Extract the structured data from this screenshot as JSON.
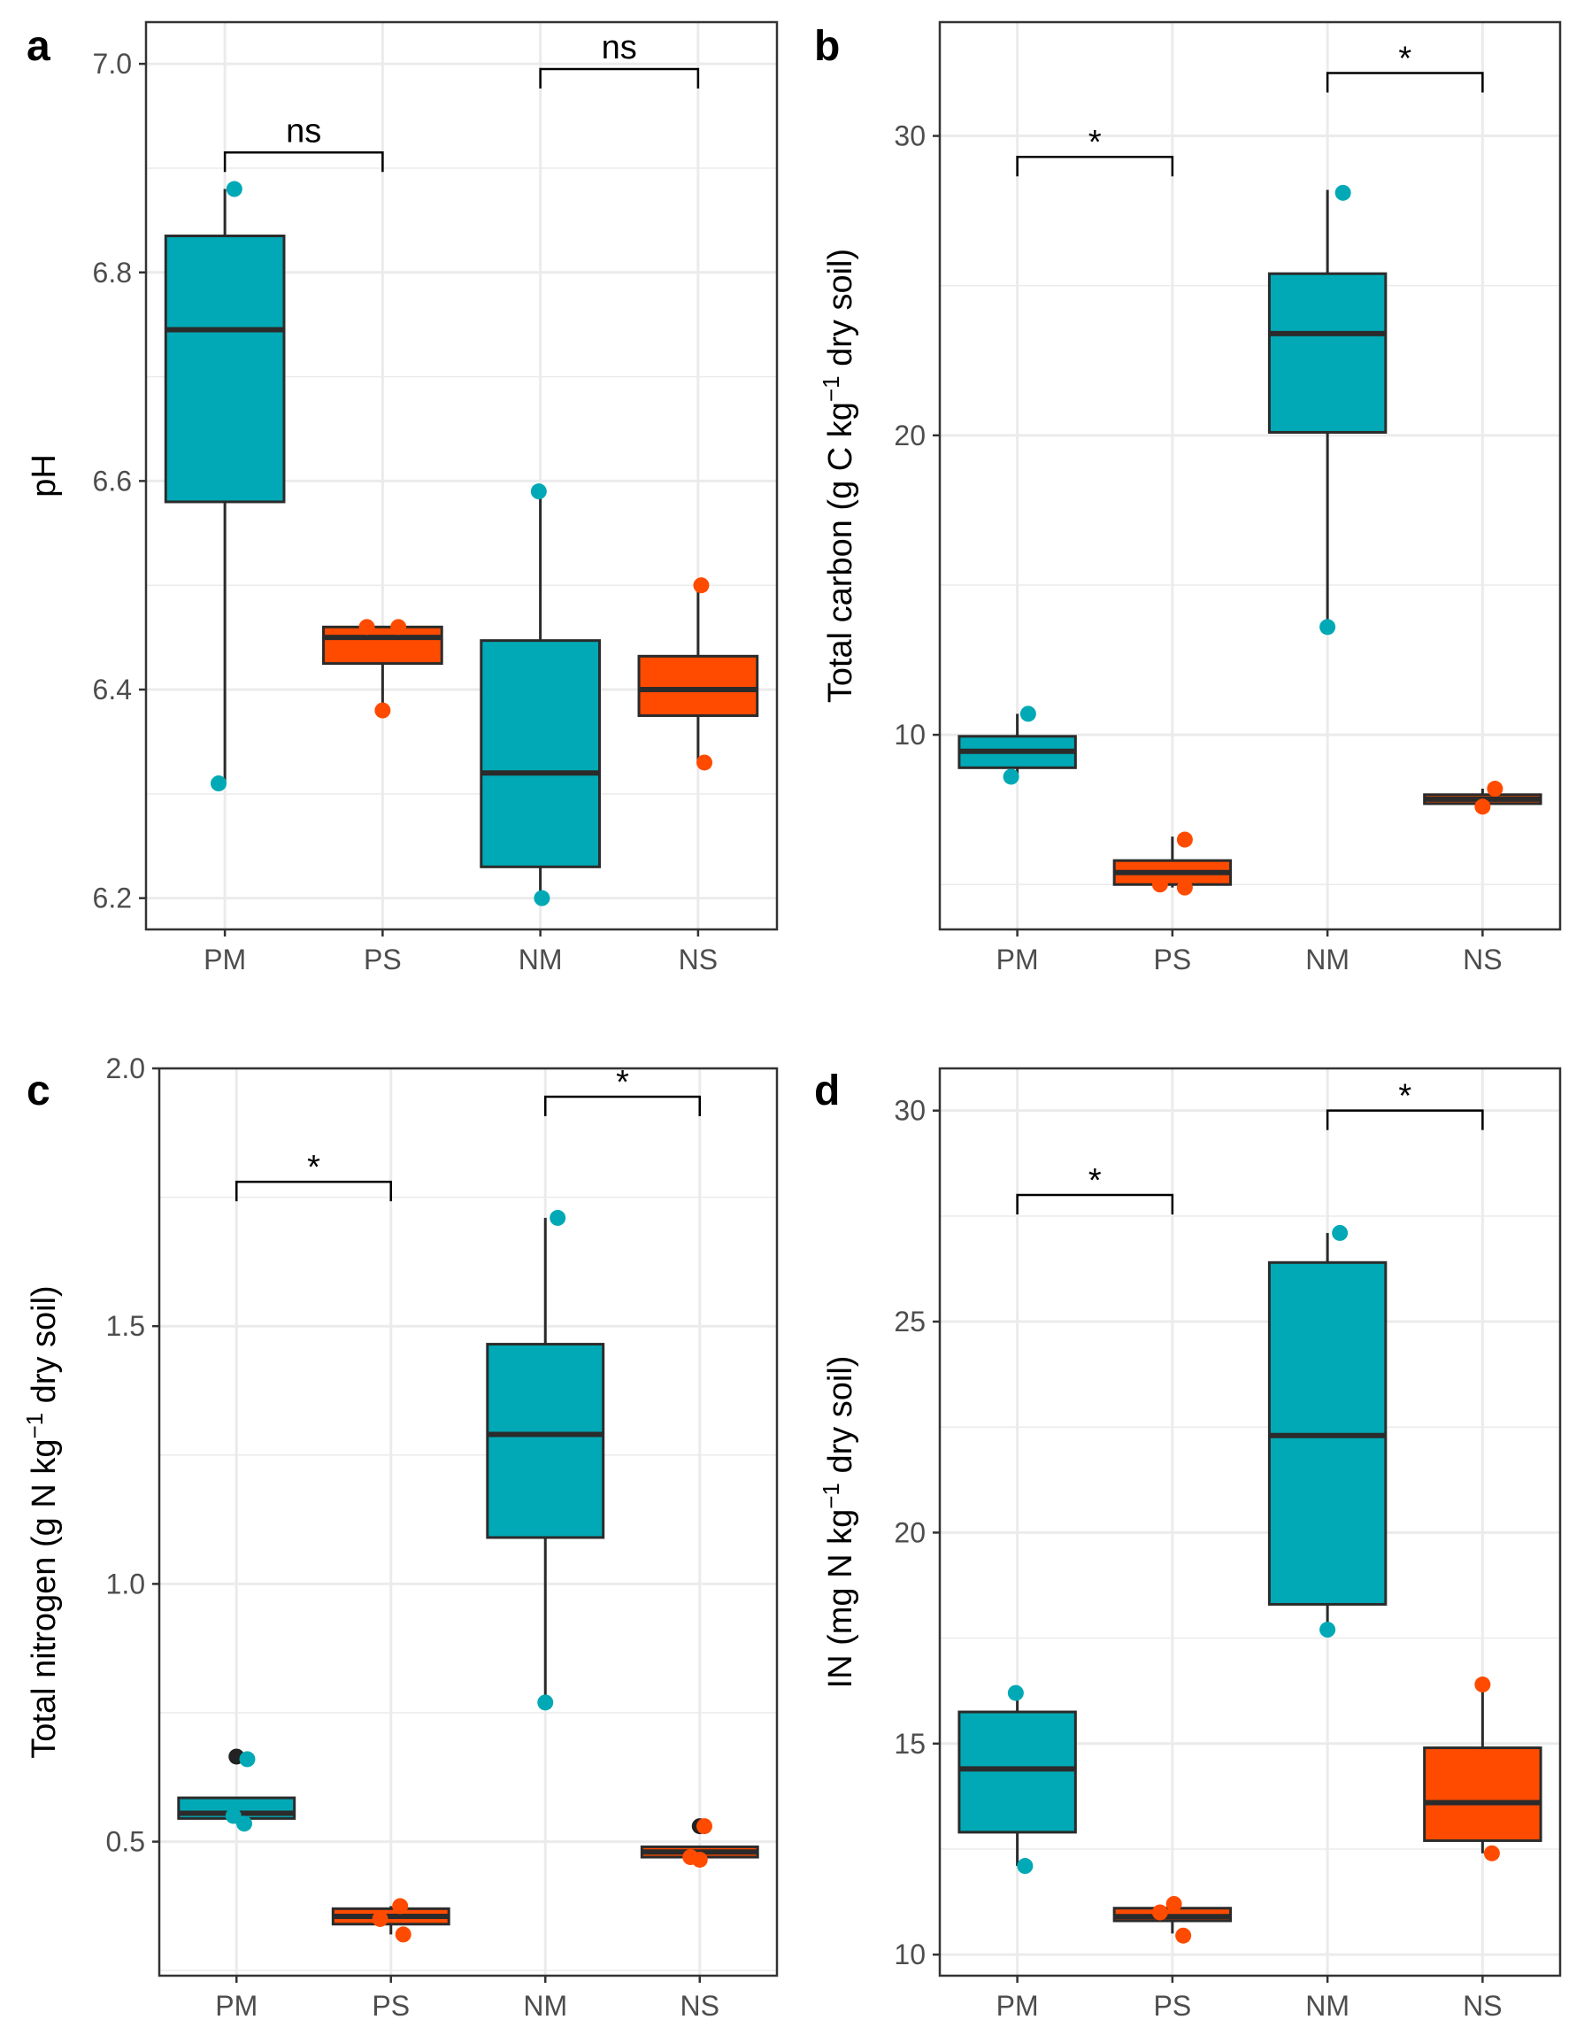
{
  "colors": {
    "mature": "#00A9B5",
    "seedling": "#FF4B00",
    "outlier": "#222222",
    "grid": "#ebebeb",
    "line": "#2b2b2b",
    "frame": "#333333"
  },
  "groups": [
    "PM",
    "PS",
    "NM",
    "NS"
  ],
  "chart_data": [
    {
      "panel": "a",
      "type": "boxplot",
      "ylabel": {
        "pre": "pH",
        "sup": "",
        "post": ""
      },
      "ylim": [
        6.17,
        7.04
      ],
      "yticks": [
        6.2,
        6.4,
        6.6,
        6.8,
        7.0
      ],
      "yticklabels": [
        "6.2",
        "6.4",
        "6.6",
        "6.8",
        "7.0"
      ],
      "minor_gridlines": [
        6.3,
        6.5,
        6.7,
        6.9
      ],
      "boxes": [
        {
          "group": "PM",
          "color": "mature",
          "q1": 6.58,
          "median": 6.745,
          "q3": 6.835,
          "whisker_low": 6.31,
          "whisker_high": 6.88,
          "points": [
            {
              "y": 6.88,
              "dx": 0.06
            },
            {
              "y": 6.31,
              "dx": -0.04
            }
          ]
        },
        {
          "group": "PS",
          "color": "seedling",
          "q1": 6.425,
          "median": 6.45,
          "q3": 6.46,
          "whisker_low": 6.38,
          "whisker_high": 6.46,
          "points": [
            {
              "y": 6.46,
              "dx": -0.1
            },
            {
              "y": 6.46,
              "dx": 0.1
            },
            {
              "y": 6.38,
              "dx": 0.0
            }
          ]
        },
        {
          "group": "NM",
          "color": "mature",
          "q1": 6.23,
          "median": 6.32,
          "q3": 6.447,
          "whisker_low": 6.2,
          "whisker_high": 6.59,
          "points": [
            {
              "y": 6.59,
              "dx": -0.01
            },
            {
              "y": 6.2,
              "dx": 0.01
            }
          ]
        },
        {
          "group": "NS",
          "color": "seedling",
          "q1": 6.375,
          "median": 6.4,
          "q3": 6.432,
          "whisker_low": 6.33,
          "whisker_high": 6.5,
          "points": [
            {
              "y": 6.5,
              "dx": 0.02
            },
            {
              "y": 6.33,
              "dx": 0.04
            }
          ]
        }
      ],
      "comparisons": [
        {
          "from": "PM",
          "to": "PS",
          "y": 6.915,
          "label": "ns"
        },
        {
          "from": "NM",
          "to": "NS",
          "y": 6.995,
          "label": "ns"
        }
      ]
    },
    {
      "panel": "b",
      "type": "boxplot",
      "ylabel": {
        "pre": "Total carbon (g C  kg",
        "sup": "−1",
        "post": " dry soil)"
      },
      "ylim": [
        3.5,
        33.8
      ],
      "yticks": [
        10,
        20,
        30
      ],
      "yticklabels": [
        "10",
        "20",
        "30"
      ],
      "minor_gridlines": [
        5,
        15,
        25
      ],
      "boxes": [
        {
          "group": "PM",
          "color": "mature",
          "q1": 8.9,
          "median": 9.45,
          "q3": 9.95,
          "whisker_low": 8.6,
          "whisker_high": 10.7,
          "points": [
            {
              "y": 10.7,
              "dx": 0.07
            },
            {
              "y": 8.6,
              "dx": -0.04
            }
          ]
        },
        {
          "group": "PS",
          "color": "seedling",
          "q1": 5.0,
          "median": 5.4,
          "q3": 5.8,
          "whisker_low": 4.9,
          "whisker_high": 6.6,
          "points": [
            {
              "y": 6.5,
              "dx": 0.08
            },
            {
              "y": 5.0,
              "dx": -0.08
            },
            {
              "y": 4.9,
              "dx": 0.08
            }
          ]
        },
        {
          "group": "NM",
          "color": "mature",
          "q1": 20.1,
          "median": 23.4,
          "q3": 25.4,
          "whisker_low": 13.6,
          "whisker_high": 28.2,
          "points": [
            {
              "y": 28.1,
              "dx": 0.1
            },
            {
              "y": 13.6,
              "dx": 0.0
            }
          ]
        },
        {
          "group": "NS",
          "color": "seedling",
          "q1": 7.7,
          "median": 7.85,
          "q3": 8.0,
          "whisker_low": 7.6,
          "whisker_high": 8.2,
          "points": [
            {
              "y": 8.2,
              "dx": 0.08
            },
            {
              "y": 7.6,
              "dx": 0.0
            }
          ]
        }
      ],
      "comparisons": [
        {
          "from": "PM",
          "to": "PS",
          "y": 29.3,
          "label": "*"
        },
        {
          "from": "NM",
          "to": "NS",
          "y": 32.1,
          "label": "*"
        }
      ]
    },
    {
      "panel": "c",
      "type": "boxplot",
      "ylabel": {
        "pre": "Total nitrogen (g N  kg",
        "sup": "−1",
        "post": " dry soil)"
      },
      "ylim": [
        0.24,
        2.0
      ],
      "yticks": [
        0.5,
        1.0,
        1.5,
        2.0
      ],
      "yticklabels": [
        "0.5",
        "1.0",
        "1.5",
        "2.0"
      ],
      "minor_gridlines": [
        0.25,
        0.75,
        1.25,
        1.75
      ],
      "boxes": [
        {
          "group": "PM",
          "color": "mature",
          "q1": 0.545,
          "median": 0.555,
          "q3": 0.585,
          "whisker_low": 0.535,
          "whisker_high": 0.585,
          "points": [
            {
              "y": 0.66,
              "dx": 0.07
            },
            {
              "y": 0.535,
              "dx": 0.05
            },
            {
              "y": 0.55,
              "dx": -0.02
            }
          ],
          "outliers": [
            {
              "y": 0.665,
              "dx": 0.0
            }
          ]
        },
        {
          "group": "PS",
          "color": "seedling",
          "q1": 0.34,
          "median": 0.355,
          "q3": 0.37,
          "whisker_low": 0.32,
          "whisker_high": 0.375,
          "points": [
            {
              "y": 0.375,
              "dx": 0.06
            },
            {
              "y": 0.35,
              "dx": -0.07
            },
            {
              "y": 0.32,
              "dx": 0.08
            }
          ]
        },
        {
          "group": "NM",
          "color": "mature",
          "q1": 1.09,
          "median": 1.29,
          "q3": 1.465,
          "whisker_low": 0.77,
          "whisker_high": 1.71,
          "points": [
            {
              "y": 1.71,
              "dx": 0.08
            },
            {
              "y": 0.77,
              "dx": 0.0
            }
          ]
        },
        {
          "group": "NS",
          "color": "seedling",
          "q1": 0.47,
          "median": 0.48,
          "q3": 0.49,
          "whisker_low": 0.465,
          "whisker_high": 0.49,
          "points": [
            {
              "y": 0.53,
              "dx": 0.03
            },
            {
              "y": 0.465,
              "dx": 0.0
            },
            {
              "y": 0.47,
              "dx": -0.06
            }
          ],
          "outliers": [
            {
              "y": 0.53,
              "dx": 0.0
            }
          ]
        }
      ],
      "comparisons": [
        {
          "from": "PM",
          "to": "PS",
          "y": 1.78,
          "label": "*"
        },
        {
          "from": "NM",
          "to": "NS",
          "y": 1.945,
          "label": "*"
        }
      ]
    },
    {
      "panel": "d",
      "type": "boxplot",
      "ylabel": {
        "pre": "IN (mg N  kg",
        "sup": "−1",
        "post": " dry soil)"
      },
      "ylim": [
        9.5,
        31.0
      ],
      "yticks": [
        10,
        15,
        20,
        25,
        30
      ],
      "yticklabels": [
        "10",
        "15",
        "20",
        "25",
        "30"
      ],
      "minor_gridlines": [
        12.5,
        17.5,
        22.5,
        27.5
      ],
      "boxes": [
        {
          "group": "PM",
          "color": "mature",
          "q1": 12.9,
          "median": 14.4,
          "q3": 15.75,
          "whisker_low": 12.1,
          "whisker_high": 16.2,
          "points": [
            {
              "y": 16.2,
              "dx": -0.01
            },
            {
              "y": 12.1,
              "dx": 0.05
            }
          ]
        },
        {
          "group": "PS",
          "color": "seedling",
          "q1": 10.8,
          "median": 10.9,
          "q3": 11.1,
          "whisker_low": 10.5,
          "whisker_high": 11.3,
          "points": [
            {
              "y": 11.2,
              "dx": 0.01
            },
            {
              "y": 11.0,
              "dx": -0.08
            },
            {
              "y": 10.45,
              "dx": 0.07
            }
          ]
        },
        {
          "group": "NM",
          "color": "mature",
          "q1": 18.3,
          "median": 22.3,
          "q3": 26.4,
          "whisker_low": 17.7,
          "whisker_high": 27.1,
          "points": [
            {
              "y": 27.1,
              "dx": 0.08
            },
            {
              "y": 17.7,
              "dx": 0.0
            }
          ]
        },
        {
          "group": "NS",
          "color": "seedling",
          "q1": 12.7,
          "median": 13.6,
          "q3": 14.9,
          "whisker_low": 12.4,
          "whisker_high": 16.5,
          "points": [
            {
              "y": 16.4,
              "dx": 0.0
            },
            {
              "y": 12.4,
              "dx": 0.06
            }
          ]
        }
      ],
      "comparisons": [
        {
          "from": "PM",
          "to": "PS",
          "y": 28.0,
          "label": "*"
        },
        {
          "from": "NM",
          "to": "NS",
          "y": 30.0,
          "label": "*"
        }
      ]
    }
  ]
}
